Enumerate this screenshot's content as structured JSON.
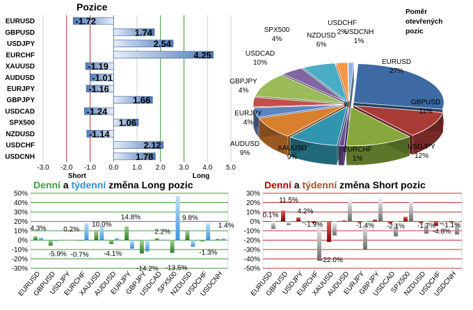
{
  "chart_data": [
    {
      "type": "bar",
      "title": "Pozice",
      "orientation": "horizontal",
      "categories": [
        "EURUSD",
        "GBPUSD",
        "USDJPY",
        "EURCHF",
        "XAUUSD",
        "AUDUSD",
        "EURJPY",
        "GBPJPY",
        "USDCAD",
        "SPX500",
        "NZDUSD",
        "USDCHF",
        "USDCNH"
      ],
      "values": [
        -1.72,
        1.74,
        2.54,
        4.25,
        -1.19,
        -1.01,
        -1.16,
        1.66,
        -1.24,
        1.06,
        -1.14,
        2.12,
        1.78
      ],
      "value_labels": [
        "-1.72",
        "1.74",
        "2.54",
        "4.25",
        "-1.19",
        "-1.01",
        "-1.16",
        "1.66",
        "-1.24",
        "1.06",
        "-1.14",
        "2.12",
        "1.78"
      ],
      "xlim": [
        -3.0,
        5.0
      ],
      "x_ticks": [
        "-3.0",
        "-2.0",
        "-1.0",
        "0.0",
        "1.0",
        "2.0",
        "3.0",
        "4.0",
        "5.0"
      ],
      "short_label": "Short",
      "long_label": "Long",
      "grid": true,
      "bar_color": "#4f79b8"
    },
    {
      "type": "pie",
      "title_lines": [
        "Poměr",
        "otevřených",
        "pozic"
      ],
      "slices": [
        {
          "label": "EURUSD",
          "pct": 27,
          "text": "27%",
          "color": "#3d6aa3"
        },
        {
          "label": "GBPUSD",
          "pct": 11,
          "text": "11%",
          "color": "#a83b36"
        },
        {
          "label": "USDJPY",
          "pct": 12,
          "text": "12%",
          "color": "#86a83c"
        },
        {
          "label": "EURCHF",
          "pct": 1,
          "text": "1%",
          "color": "#6a5094"
        },
        {
          "label": "XAUUSD",
          "pct": 9,
          "text": "9%",
          "color": "#3195b0"
        },
        {
          "label": "AUDUSD",
          "pct": 9,
          "text": "9%",
          "color": "#d9802f"
        },
        {
          "label": "EURJPY",
          "pct": 4,
          "text": "4%",
          "color": "#5b84bf"
        },
        {
          "label": "GBPJPY",
          "pct": 4,
          "text": "4%",
          "color": "#c44f4a"
        },
        {
          "label": "USDCAD",
          "pct": 10,
          "text": "10%",
          "color": "#9bbb59"
        },
        {
          "label": "SPX500",
          "pct": 4,
          "text": "4%",
          "color": "#8067a2"
        },
        {
          "label": "NZDUSD",
          "pct": 6,
          "text": "6%",
          "color": "#4bacc6"
        },
        {
          "label": "USDCHF",
          "pct": 2,
          "text": "2%",
          "color": "#f79646"
        },
        {
          "label": "USDCNH",
          "pct": 1,
          "text": "1%",
          "color": "#8eb4e3"
        }
      ]
    },
    {
      "type": "bar",
      "title_parts": [
        "Denní",
        " a ",
        "týdenní",
        " změna Long pozic"
      ],
      "title_colors": [
        "#3aa23a",
        "#000000",
        "#2e8fd4",
        "#000000"
      ],
      "categories": [
        "EURUSD",
        "GBPUSD",
        "USDJPY",
        "EURCHF",
        "XAUUSD",
        "AUDUSD",
        "EURJPY",
        "GBPJPY",
        "USDCAD",
        "SPX500",
        "NZDUSD",
        "USDCHF",
        "USDCNH"
      ],
      "series": [
        {
          "values": [
            4.3,
            -5.9,
            0.2,
            -0.7,
            10.0,
            -4.1,
            14.8,
            -14.2,
            2.2,
            -13.5,
            9.8,
            -1.3,
            1.4
          ],
          "color": "#3f9a3a"
        },
        {
          "values": [
            3.0,
            -1.0,
            0.5,
            18.0,
            14.8,
            2.5,
            -9.0,
            -12.0,
            0.6,
            47.0,
            -7.0,
            18.0,
            2.0
          ],
          "color": "#5aa7e6"
        }
      ],
      "labels": [
        {
          "i": 0,
          "text": "4.3%"
        },
        {
          "i": 1,
          "text": "-5.9%"
        },
        {
          "i": 2,
          "text": "0.2%"
        },
        {
          "i": 3,
          "text": "-0.7%"
        },
        {
          "i": 4,
          "text": "10.0%"
        },
        {
          "i": 5,
          "text": "-4.1%"
        },
        {
          "i": 6,
          "text": "14.8%"
        },
        {
          "i": 7,
          "text": "-14.2%"
        },
        {
          "i": 8,
          "text": "2.2%"
        },
        {
          "i": 9,
          "text": "-13.5%"
        },
        {
          "i": 10,
          "text": "9.8%"
        },
        {
          "i": 11,
          "text": "-1.3%"
        },
        {
          "i": 12,
          "text": "1.4%"
        }
      ],
      "ylim": [
        -30,
        50
      ],
      "y_ticks": [
        "-30%",
        "-20%",
        "-10%",
        "0%",
        "10%",
        "20%",
        "30%",
        "40%",
        "50%"
      ],
      "grid": true
    },
    {
      "type": "bar",
      "title_parts": [
        "Denní",
        " a ",
        "týdenní",
        " změna Short pozic"
      ],
      "title_colors": [
        "#c00000",
        "#000000",
        "#a0522d",
        "#000000"
      ],
      "categories": [
        "EURUSD",
        "GBPUSD",
        "USDJPY",
        "EURCHF",
        "XAUUSD",
        "AUDUSD",
        "EURJPY",
        "GBPJPY",
        "USDCAD",
        "SPX500",
        "NZDUSD",
        "USDCHF",
        "USDCNH"
      ],
      "series": [
        {
          "values": [
            0.1,
            11.5,
            4.2,
            -1.9,
            -22.0,
            1.0,
            -1.4,
            2.0,
            -2.1,
            5.0,
            -1.7,
            -4.8,
            -1.1
          ],
          "color": "#c00000"
        },
        {
          "values": [
            -8.0,
            -4.0,
            -2.0,
            -42.0,
            -15.0,
            25.0,
            -30.0,
            27.0,
            -16.0,
            24.0,
            -13.0,
            -3.0,
            -14.0
          ],
          "color": "#b5b5b5"
        }
      ],
      "labels": [
        {
          "i": 0,
          "text": "0.1%"
        },
        {
          "i": 1,
          "text": "11.5%"
        },
        {
          "i": 2,
          "text": "4.2%"
        },
        {
          "i": 3,
          "text": "-1.9%"
        },
        {
          "i": 4,
          "text": "-22.0%"
        },
        {
          "i": 6,
          "text": "-1.4%"
        },
        {
          "i": 8,
          "text": "-2.1%"
        },
        {
          "i": 10,
          "text": "-1.7%"
        },
        {
          "i": 11,
          "text": "-4.8%"
        },
        {
          "i": 12,
          "text": "-1.1%"
        }
      ],
      "ylim": [
        -50,
        30
      ],
      "y_ticks": [
        "-50%",
        "-40%",
        "-30%",
        "-20%",
        "-10%",
        "0%",
        "10%",
        "20%",
        "30%"
      ],
      "grid": true
    }
  ]
}
